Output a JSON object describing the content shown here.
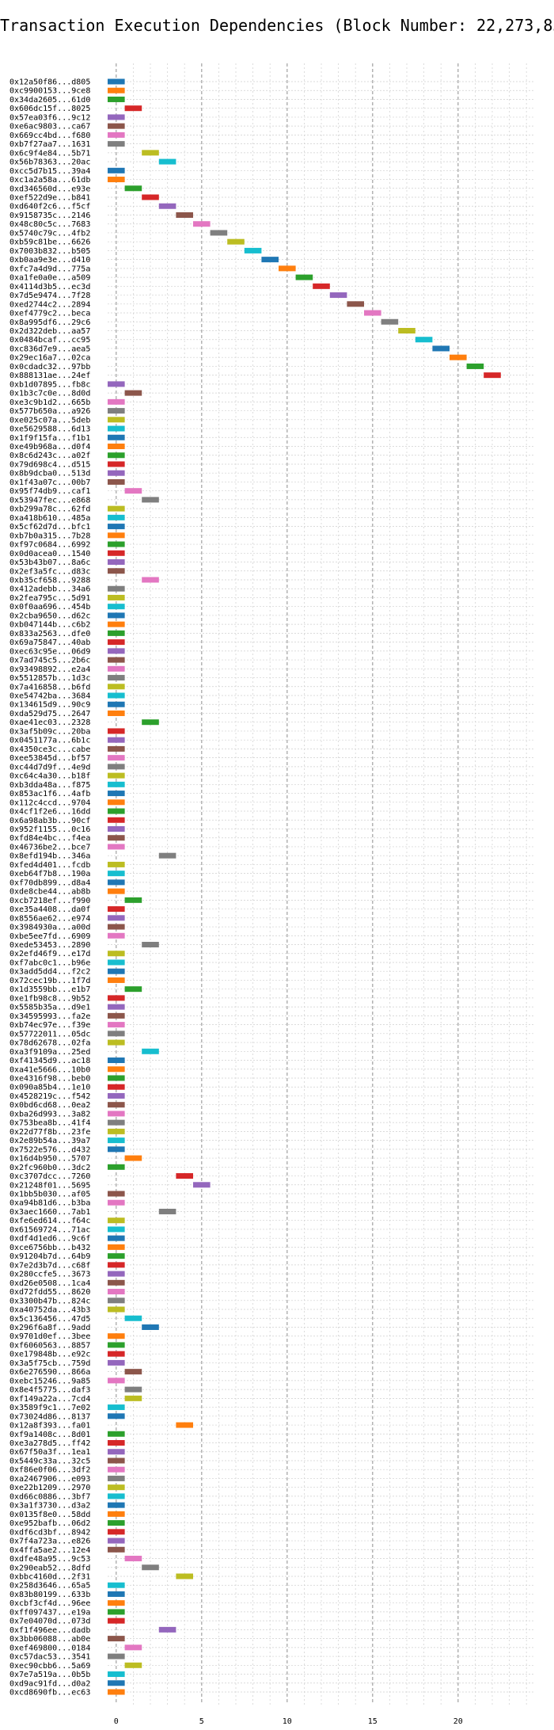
{
  "chart_data": {
    "type": "bar",
    "orientation": "horizontal",
    "title": "Transaction Execution Dependencies (Block Number: 22,273,834)",
    "xlabel": "",
    "ylabel": "",
    "xlim": [
      -0.5,
      24.5
    ],
    "x_ticks": [
      0,
      5,
      10,
      15,
      20
    ],
    "grid": true,
    "legend": "none",
    "bar_duration": 1,
    "colors": [
      "#1f77b4",
      "#ff7f0e",
      "#2ca02c",
      "#d62728",
      "#9467bd",
      "#8c564b",
      "#e377c2",
      "#7f7f7f",
      "#bcbd22",
      "#17becf"
    ],
    "transactions": [
      {
        "label": "0x12a50f86...d805",
        "start": 0
      },
      {
        "label": "0xc9900153...9ce8",
        "start": 0
      },
      {
        "label": "0x34da2605...61d0",
        "start": 0
      },
      {
        "label": "0x606dc15f...8025",
        "start": 1
      },
      {
        "label": "0x57ea03f6...9c12",
        "start": 0
      },
      {
        "label": "0xe6ac9803...ca67",
        "start": 0
      },
      {
        "label": "0x669cc4bd...f680",
        "start": 0
      },
      {
        "label": "0xb7f27aa7...1631",
        "start": 0
      },
      {
        "label": "0x6c9f4e84...5b71",
        "start": 2
      },
      {
        "label": "0x56b78363...20ac",
        "start": 3
      },
      {
        "label": "0xcc5d7b15...39a4",
        "start": 0
      },
      {
        "label": "0xc1a2a58a...61db",
        "start": 0
      },
      {
        "label": "0xd346560d...e93e",
        "start": 1
      },
      {
        "label": "0xef522d9e...b841",
        "start": 2
      },
      {
        "label": "0xd640f2c6...f5cf",
        "start": 3
      },
      {
        "label": "0x9158735c...2146",
        "start": 4
      },
      {
        "label": "0x48c80c5c...7683",
        "start": 5
      },
      {
        "label": "0x5740c79c...4fb2",
        "start": 6
      },
      {
        "label": "0xb59c81be...6626",
        "start": 7
      },
      {
        "label": "0x7003b832...b505",
        "start": 8
      },
      {
        "label": "0xb0aa9e3e...d410",
        "start": 9
      },
      {
        "label": "0xfc7a4d9d...775a",
        "start": 10
      },
      {
        "label": "0xa1fe0a0e...a509",
        "start": 11
      },
      {
        "label": "0x4114d3b5...ec3d",
        "start": 12
      },
      {
        "label": "0x7d5e9474...7f28",
        "start": 13
      },
      {
        "label": "0xed2744c2...2894",
        "start": 14
      },
      {
        "label": "0xef4779c2...beca",
        "start": 15
      },
      {
        "label": "0x8a995df6...29c6",
        "start": 16
      },
      {
        "label": "0x2d322deb...aa57",
        "start": 17
      },
      {
        "label": "0x0484bcaf...cc95",
        "start": 18
      },
      {
        "label": "0xc836d7e9...aea5",
        "start": 19
      },
      {
        "label": "0x29ec16a7...02ca",
        "start": 20
      },
      {
        "label": "0x0cdadc32...97bb",
        "start": 21
      },
      {
        "label": "0x888131ae...24ef",
        "start": 22
      },
      {
        "label": "0xb1d07895...fb8c",
        "start": 0
      },
      {
        "label": "0x1b3c7c0e...8d0d",
        "start": 1
      },
      {
        "label": "0xe3c9b1d2...665b",
        "start": 0
      },
      {
        "label": "0x577b650a...a926",
        "start": 0
      },
      {
        "label": "0xe025c07a...5deb",
        "start": 0
      },
      {
        "label": "0xe5629588...6d13",
        "start": 0
      },
      {
        "label": "0x1f9f15fa...f1b1",
        "start": 0
      },
      {
        "label": "0xe49b968a...d0f4",
        "start": 0
      },
      {
        "label": "0x8c6d243c...a02f",
        "start": 0
      },
      {
        "label": "0x79d698c4...d515",
        "start": 0
      },
      {
        "label": "0x8b9dcba0...513d",
        "start": 0
      },
      {
        "label": "0x1f43a07c...00b7",
        "start": 0
      },
      {
        "label": "0x95f74db9...caf1",
        "start": 1
      },
      {
        "label": "0x53947fec...e868",
        "start": 2
      },
      {
        "label": "0xb299a78c...62fd",
        "start": 0
      },
      {
        "label": "0xa418b610...485a",
        "start": 0
      },
      {
        "label": "0x5cf62d7d...bfc1",
        "start": 0
      },
      {
        "label": "0xb7b0a315...7b28",
        "start": 0
      },
      {
        "label": "0xf97c0684...6992",
        "start": 0
      },
      {
        "label": "0x0d0acea0...1540",
        "start": 0
      },
      {
        "label": "0x53b43b07...8a6c",
        "start": 0
      },
      {
        "label": "0x2ef3a5fc...d83c",
        "start": 0
      },
      {
        "label": "0xb35cf658...9288",
        "start": 2
      },
      {
        "label": "0x412adebb...34a6",
        "start": 0
      },
      {
        "label": "0x2fea795c...5d91",
        "start": 0
      },
      {
        "label": "0x0f0aa696...454b",
        "start": 0
      },
      {
        "label": "0x2cba9650...d62c",
        "start": 0
      },
      {
        "label": "0xb047144b...c6b2",
        "start": 0
      },
      {
        "label": "0x833a2563...dfe0",
        "start": 0
      },
      {
        "label": "0x69a75847...40ab",
        "start": 0
      },
      {
        "label": "0xec63c95e...06d9",
        "start": 0
      },
      {
        "label": "0x7ad745c5...2b6c",
        "start": 0
      },
      {
        "label": "0x93498892...e2a4",
        "start": 0
      },
      {
        "label": "0x551285 7b...1d3c",
        "start": 0
      },
      {
        "label": "0x7a416858...b6fd",
        "start": 0
      },
      {
        "label": "0xe54742ba...3684",
        "start": 0
      },
      {
        "label": "0x134615d9...90c9",
        "start": 0
      },
      {
        "label": "0xda529d75...2647",
        "start": 0
      },
      {
        "label": "0xae41ec03...2328",
        "start": 2
      },
      {
        "label": "0x3af5b09c...20ba",
        "start": 0
      },
      {
        "label": "0x0451177a...6b1c",
        "start": 0
      },
      {
        "label": "0x4350ce3c...cabe",
        "start": 0
      },
      {
        "label": "0xee53845d...bf57",
        "start": 0
      },
      {
        "label": "0xc44d7d9f...4e9d",
        "start": 0
      },
      {
        "label": "0xc64c4a30...b18f",
        "start": 0
      },
      {
        "label": "0xb3dda48a...f875",
        "start": 0
      },
      {
        "label": "0x853ac1f6...4afb",
        "start": 0
      },
      {
        "label": "0x112c4ccd...9704",
        "start": 0
      },
      {
        "label": "0x4cf1f2e6...16dd",
        "start": 0
      },
      {
        "label": "0x6a98ab3b...90cf",
        "start": 0
      },
      {
        "label": "0x952f1155...0c16",
        "start": 0
      },
      {
        "label": "0xfd84e4bc...f4ea",
        "start": 0
      },
      {
        "label": "0x46736be2...bce7",
        "start": 0
      },
      {
        "label": "0x8efd194b...346a",
        "start": 3
      },
      {
        "label": "0xfed4d401...fcdb",
        "start": 0
      },
      {
        "label": "0xeb64f7b8...190a",
        "start": 0
      },
      {
        "label": "0xf70db899...d8a4",
        "start": 0
      },
      {
        "label": "0xde8cbe44...ab8b",
        "start": 0
      },
      {
        "label": "0xcb7218ef...f990",
        "start": 1
      },
      {
        "label": "0xe35a4408...da0f",
        "start": 0
      },
      {
        "label": "0x8556ae62...e974",
        "start": 0
      },
      {
        "label": "0x3984930a...a00d",
        "start": 0
      },
      {
        "label": "0xbe5ee7fd...6909",
        "start": 0
      },
      {
        "label": "0xede53453...2890",
        "start": 2
      },
      {
        "label": "0x2efd46f9...e17d",
        "start": 0
      },
      {
        "label": "0xf7abc0c1...b96e",
        "start": 0
      },
      {
        "label": "0x3add5dd4...f2c2",
        "start": 0
      },
      {
        "label": "0x72cec19b...1f7d",
        "start": 0
      },
      {
        "label": "0x1d3559bb...e1b7",
        "start": 1
      },
      {
        "label": "0xe1fb98c8...9b52",
        "start": 0
      },
      {
        "label": "0x5585b35a...d9e1",
        "start": 0
      },
      {
        "label": "0x34595993...fa2e",
        "start": 0
      },
      {
        "label": "0xb74ec97e...f39e",
        "start": 0
      },
      {
        "label": "0x57722011...05dc",
        "start": 0
      },
      {
        "label": "0x78d62678...02fa",
        "start": 0
      },
      {
        "label": "0xa3f9109a...25ed",
        "start": 2
      },
      {
        "label": "0xf41345d9...ac18",
        "start": 0
      },
      {
        "label": "0xa41e5666...10b0",
        "start": 0
      },
      {
        "label": "0xe4316f98...beb0",
        "start": 0
      },
      {
        "label": "0x090a85b4...1e10",
        "start": 0
      },
      {
        "label": "0x4528219c...f542",
        "start": 0
      },
      {
        "label": "0x0bd6cd68...0ea2",
        "start": 0
      },
      {
        "label": "0xba26d993...3a82",
        "start": 0
      },
      {
        "label": "0x753bea8b...41f4",
        "start": 0
      },
      {
        "label": "0x22d77f8b...23fe",
        "start": 0
      },
      {
        "label": "0x2e89b54a...39a7",
        "start": 0
      },
      {
        "label": "0x7522e576...d432",
        "start": 0
      },
      {
        "label": "0x16d4b950...5707",
        "start": 1
      },
      {
        "label": "0x2fc960b0...3dc2",
        "start": 0
      },
      {
        "label": "0xc3707dcc...7260",
        "start": 4
      },
      {
        "label": "0x21248f01...5695",
        "start": 5
      },
      {
        "label": "0x1bb5b030...af05",
        "start": 0
      },
      {
        "label": "0xa94b81d6...b3ba",
        "start": 0
      },
      {
        "label": "0x3aec1660...7ab1",
        "start": 3
      },
      {
        "label": "0xfe6ed614...f64c",
        "start": 0
      },
      {
        "label": "0x61569724...71ac",
        "start": 0
      },
      {
        "label": "0xdf4d1ed6...9c6f",
        "start": 0
      },
      {
        "label": "0xce6756bb...b432",
        "start": 0
      },
      {
        "label": "0x91204b7d...64b9",
        "start": 0
      },
      {
        "label": "0x7e2d3b7d...c68f",
        "start": 0
      },
      {
        "label": "0x280ccfe5...3673",
        "start": 0
      },
      {
        "label": "0xd26e0508...1ca4",
        "start": 0
      },
      {
        "label": "0xd72fdd55...8620",
        "start": 0
      },
      {
        "label": "0x3300b47b...824c",
        "start": 0
      },
      {
        "label": "0xa40752da...43b3",
        "start": 0
      },
      {
        "label": "0x5c136456...47d5",
        "start": 1
      },
      {
        "label": "0x296f6a8f...9add",
        "start": 2
      },
      {
        "label": "0x9701d0ef...3bee",
        "start": 0
      },
      {
        "label": "0xf6060563...8857",
        "start": 0
      },
      {
        "label": "0xe179848b...e92c",
        "start": 0
      },
      {
        "label": "0x3a5f75cb...759d",
        "start": 0
      },
      {
        "label": "0x6e276590...866a",
        "start": 1
      },
      {
        "label": "0xebc15246...9a85",
        "start": 0
      },
      {
        "label": "0x8e4f5775...daf3",
        "start": 1
      },
      {
        "label": "0xf149a22a...7cd4",
        "start": 1
      },
      {
        "label": "0x3589f9c1...7e02",
        "start": 0
      },
      {
        "label": "0x73024d86...8137",
        "start": 0
      },
      {
        "label": "0x12a8f393...fa01",
        "start": 4
      },
      {
        "label": "0xf9a1408c...8d01",
        "start": 0
      },
      {
        "label": "0xe3a278d5...ff42",
        "start": 0
      },
      {
        "label": "0x67f50a3f...1ea1",
        "start": 0
      },
      {
        "label": "0x5449c33a...32c5",
        "start": 0
      },
      {
        "label": "0xf86e0f06...3df2",
        "start": 0
      },
      {
        "label": "0xa2467906...e093",
        "start": 0
      },
      {
        "label": "0xe22b1209...2970",
        "start": 0
      },
      {
        "label": "0xd66c0886...3bf7",
        "start": 0
      },
      {
        "label": "0x3a1f3730...d3a2",
        "start": 0
      },
      {
        "label": "0x0135f8e0...58dd",
        "start": 0
      },
      {
        "label": "0xe952bafb...06d2",
        "start": 0
      },
      {
        "label": "0xdf6cd3bf...8942",
        "start": 0
      },
      {
        "label": "0x7f4a723a...e826",
        "start": 0
      },
      {
        "label": "0x4ffa5ae2...12e4",
        "start": 0
      },
      {
        "label": "0xdfe48a95...9c53",
        "start": 1
      },
      {
        "label": "0x290eab52...8dfd",
        "start": 2
      },
      {
        "label": "0xbbc4160d...2f31",
        "start": 4
      },
      {
        "label": "0x258d3646...65a5",
        "start": 0
      },
      {
        "label": "0x83b80199...633b",
        "start": 0
      },
      {
        "label": "0xcbf3cf4d...96ee",
        "start": 0
      },
      {
        "label": "0xff097437...e19a",
        "start": 0
      },
      {
        "label": "0x7e04070d...073d",
        "start": 0
      },
      {
        "label": "0xf1f496ee...dadb",
        "start": 3
      },
      {
        "label": "0x3bb06088...ab0e",
        "start": 0
      },
      {
        "label": "0xef469800...0184",
        "start": 1
      },
      {
        "label": "0xc57dac53...3541",
        "start": 0
      },
      {
        "label": "0xec90cbb6...5a69",
        "start": 1
      },
      {
        "label": "0x7e7a519a...0b5b",
        "start": 0
      },
      {
        "label": "0xd9ac91fd...d0a2",
        "start": 0
      },
      {
        "label": "0xcd8690fb...ec63",
        "start": 0
      }
    ]
  }
}
